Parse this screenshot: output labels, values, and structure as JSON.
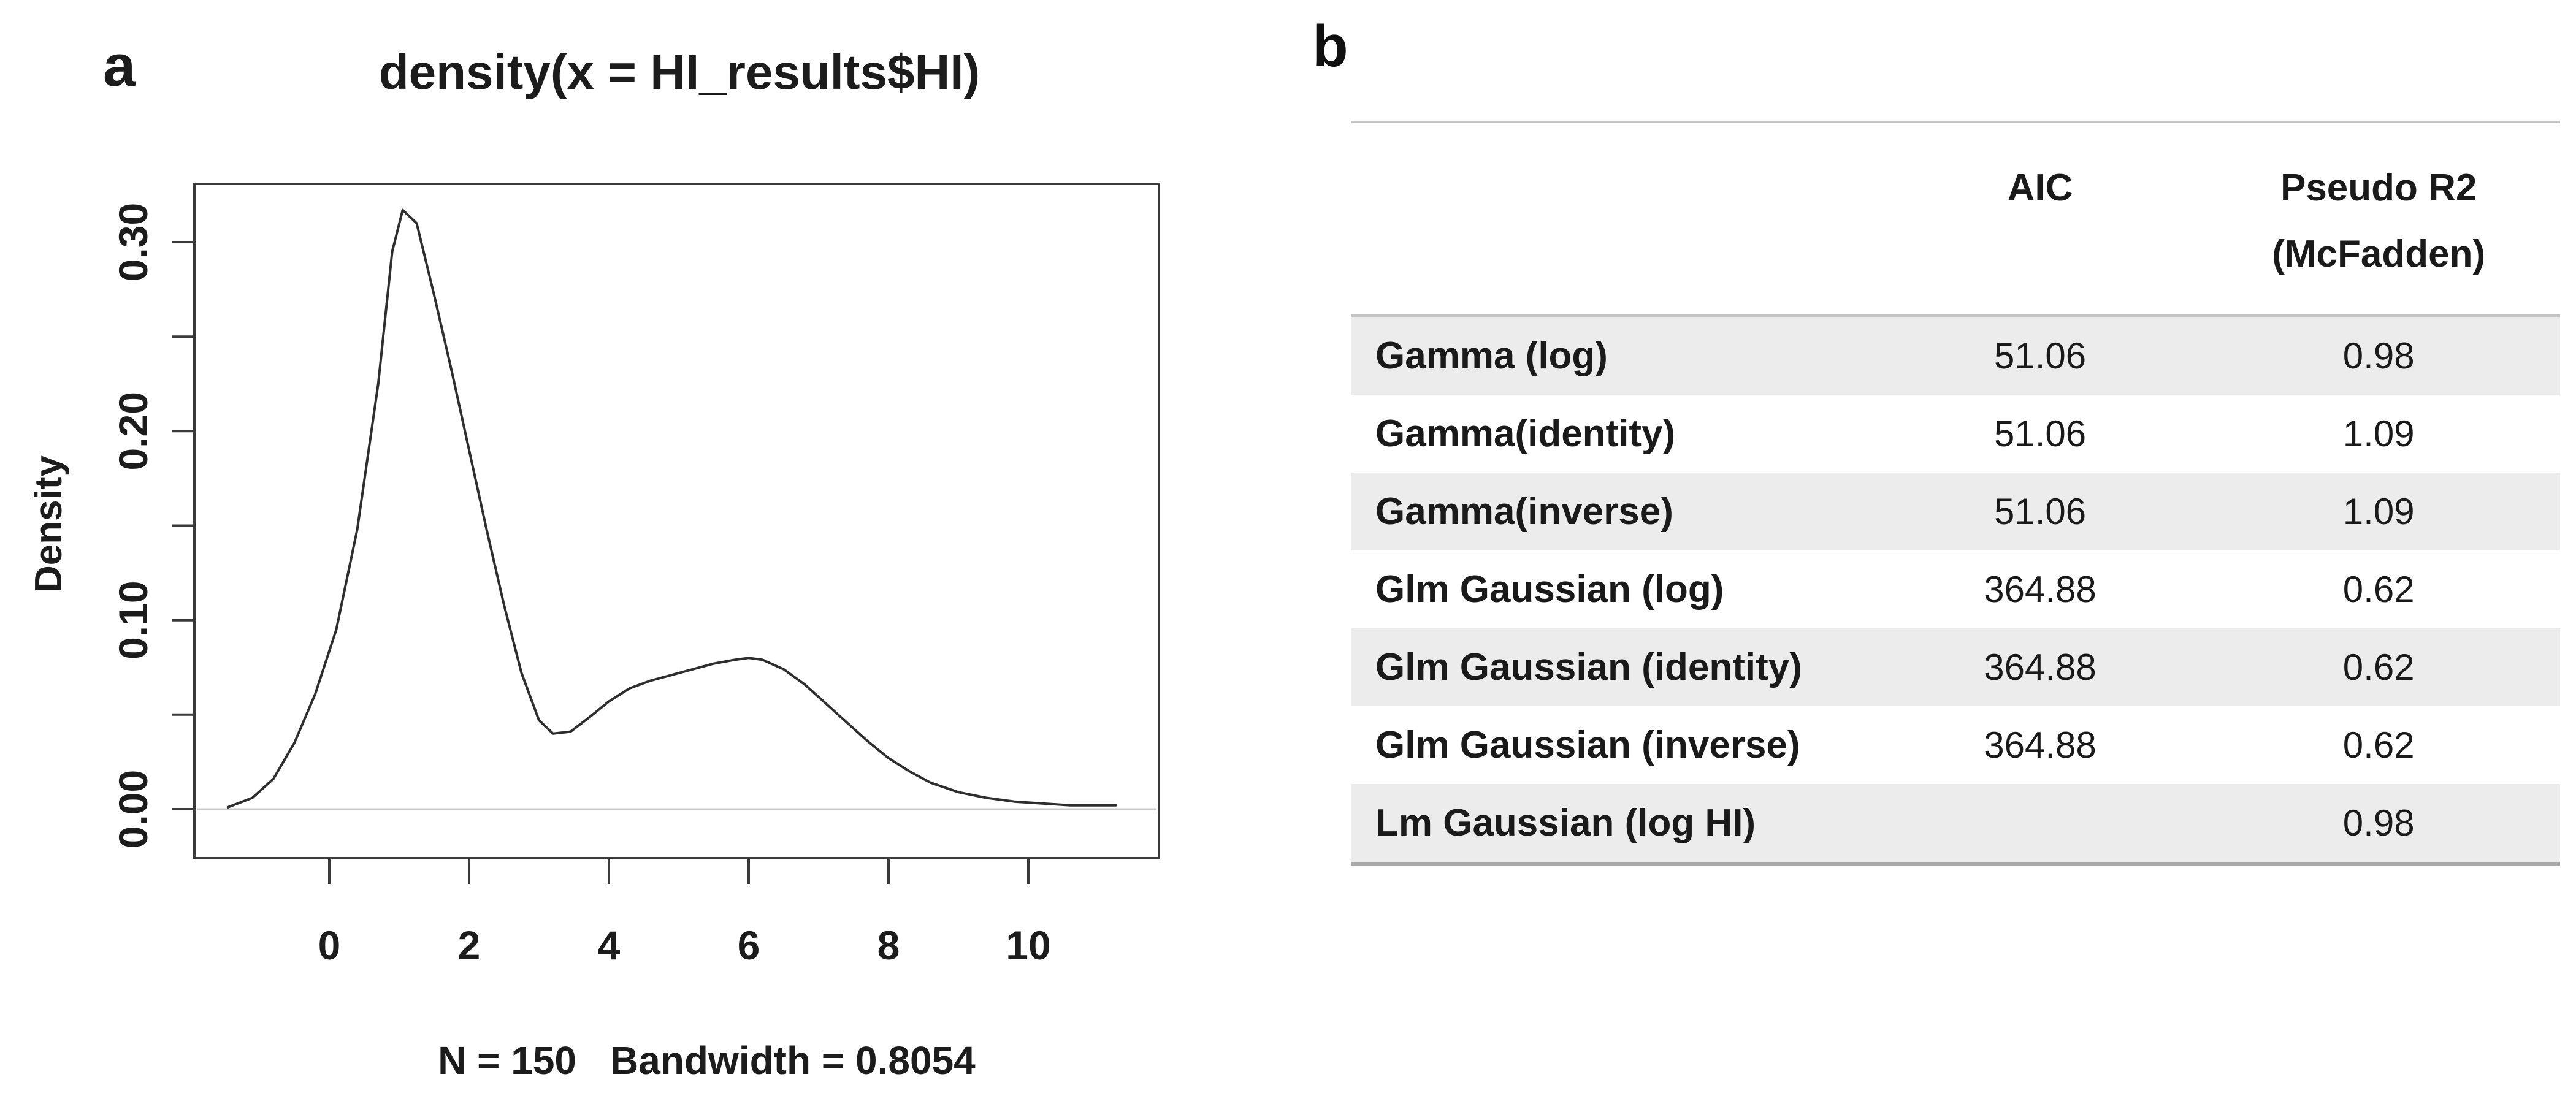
{
  "figure": {
    "panel_a_label": "a",
    "panel_b_label": "b"
  },
  "chart_data": {
    "type": "line",
    "title": "density(x = HI_results$HI)",
    "xlabel": "N = 150   Bandwidth = 0.8054",
    "ylabel": "Density",
    "annotation_n": "N = 150",
    "annotation_bandwidth": "Bandwidth = 0.8054",
    "xlim": [
      -1.9,
      11.9
    ],
    "ylim": [
      0,
      0.33
    ],
    "xticks": [
      0,
      2,
      4,
      6,
      8,
      10
    ],
    "ytick_positions": [
      0,
      0.05,
      0.1,
      0.15,
      0.2,
      0.25,
      0.3
    ],
    "ytick_labels": [
      "0.00",
      "0.10",
      "0.20",
      "0.30"
    ],
    "grid": false,
    "legend": "none",
    "line_color": "#2e2e2e",
    "zero_line_color": "#c9c9c9",
    "series": [
      {
        "name": "density",
        "x": [
          -1.45,
          -1.1,
          -0.8,
          -0.5,
          -0.2,
          0.1,
          0.4,
          0.7,
          0.9,
          1.05,
          1.25,
          1.5,
          1.75,
          2.0,
          2.25,
          2.5,
          2.75,
          3.0,
          3.2,
          3.45,
          3.7,
          4.0,
          4.3,
          4.6,
          4.9,
          5.2,
          5.5,
          5.8,
          6.0,
          6.2,
          6.5,
          6.8,
          7.1,
          7.4,
          7.7,
          8.0,
          8.3,
          8.6,
          9.0,
          9.4,
          9.8,
          10.2,
          10.6,
          11.0,
          11.25
        ],
        "y": [
          0.001,
          0.006,
          0.016,
          0.035,
          0.061,
          0.095,
          0.148,
          0.225,
          0.295,
          0.317,
          0.31,
          0.272,
          0.232,
          0.19,
          0.148,
          0.108,
          0.072,
          0.047,
          0.04,
          0.041,
          0.048,
          0.057,
          0.064,
          0.068,
          0.071,
          0.074,
          0.077,
          0.079,
          0.08,
          0.079,
          0.074,
          0.066,
          0.056,
          0.046,
          0.036,
          0.027,
          0.02,
          0.014,
          0.009,
          0.006,
          0.004,
          0.003,
          0.002,
          0.002,
          0.002
        ]
      }
    ]
  },
  "table": {
    "col_headers": {
      "aic": "AIC",
      "r2_line1": "Pseudo R2",
      "r2_line2": "(McFadden)"
    },
    "rows": [
      {
        "model": "Gamma (log)",
        "aic": "51.06",
        "r2": "0.98"
      },
      {
        "model": "Gamma(identity)",
        "aic": "51.06",
        "r2": "1.09"
      },
      {
        "model": "Gamma(inverse)",
        "aic": "51.06",
        "r2": "1.09"
      },
      {
        "model": "Glm Gaussian (log)",
        "aic": "364.88",
        "r2": "0.62"
      },
      {
        "model": "Glm Gaussian (identity)",
        "aic": "364.88",
        "r2": "0.62"
      },
      {
        "model": "Glm Gaussian (inverse)",
        "aic": "364.88",
        "r2": "0.62"
      },
      {
        "model": "Lm Gaussian (log HI)",
        "aic": "",
        "r2": "0.98"
      }
    ]
  }
}
